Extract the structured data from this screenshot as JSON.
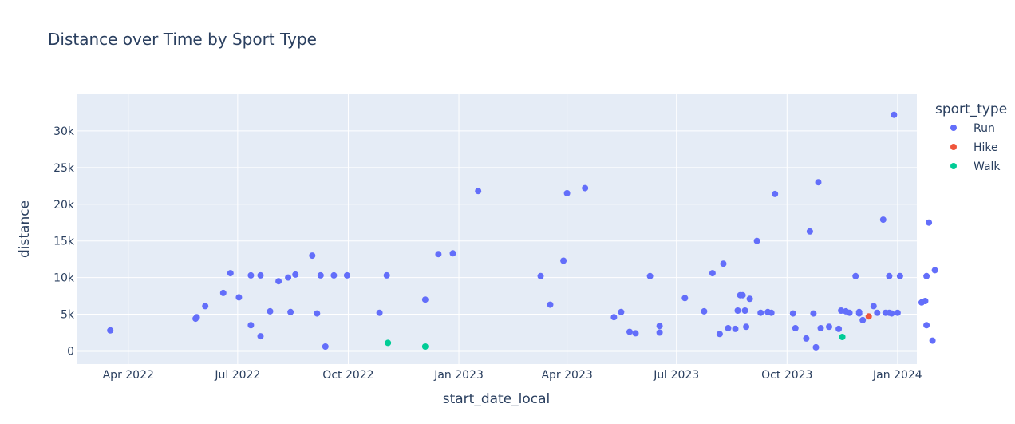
{
  "chart_data": {
    "type": "scatter",
    "title": "Distance over Time by Sport Type",
    "xlabel": "start_date_local",
    "ylabel": "distance",
    "x_ticks": [
      "Apr 2022",
      "Jul 2022",
      "Oct 2022",
      "Jan 2023",
      "Apr 2023",
      "Jul 2023",
      "Oct 2023",
      "Jan 2024"
    ],
    "y_ticks": [
      "0",
      "5k",
      "10k",
      "15k",
      "20k",
      "25k",
      "30k"
    ],
    "xlim": [
      "2022-02-17",
      "2024-01-17"
    ],
    "ylim": [
      -1800,
      35000
    ],
    "grid": true,
    "legend": {
      "title": "sport_type",
      "placement": "right"
    },
    "series": [
      {
        "name": "Run",
        "color": "#636efa",
        "points": [
          [
            "2022-03-17",
            2800
          ],
          [
            "2022-05-27",
            4400
          ],
          [
            "2022-05-28",
            4600
          ],
          [
            "2022-06-04",
            6100
          ],
          [
            "2022-06-19",
            7900
          ],
          [
            "2022-06-25",
            10600
          ],
          [
            "2022-07-02",
            7300
          ],
          [
            "2022-07-12",
            3500
          ],
          [
            "2022-07-12",
            10300
          ],
          [
            "2022-07-20",
            2000
          ],
          [
            "2022-07-20",
            10300
          ],
          [
            "2022-07-28",
            5400
          ],
          [
            "2022-08-04",
            9500
          ],
          [
            "2022-08-12",
            10000
          ],
          [
            "2022-08-14",
            5300
          ],
          [
            "2022-08-18",
            10400
          ],
          [
            "2022-09-01",
            13000
          ],
          [
            "2022-09-05",
            5100
          ],
          [
            "2022-09-08",
            10300
          ],
          [
            "2022-09-12",
            600
          ],
          [
            "2022-09-19",
            10300
          ],
          [
            "2022-09-30",
            10300
          ],
          [
            "2022-10-27",
            5200
          ],
          [
            "2022-11-02",
            10300
          ],
          [
            "2022-12-04",
            7000
          ],
          [
            "2022-12-15",
            13200
          ],
          [
            "2022-12-27",
            13300
          ],
          [
            "2023-01-17",
            21800
          ],
          [
            "2023-03-10",
            10200
          ],
          [
            "2023-03-18",
            6300
          ],
          [
            "2023-03-29",
            12300
          ],
          [
            "2023-04-01",
            21500
          ],
          [
            "2023-04-16",
            22200
          ],
          [
            "2023-05-10",
            4600
          ],
          [
            "2023-05-16",
            5300
          ],
          [
            "2023-05-23",
            2600
          ],
          [
            "2023-05-28",
            2400
          ],
          [
            "2023-06-09",
            10200
          ],
          [
            "2023-06-17",
            2500
          ],
          [
            "2023-06-17",
            3400
          ],
          [
            "2023-07-08",
            7200
          ],
          [
            "2023-07-24",
            5400
          ],
          [
            "2023-07-31",
            10600
          ],
          [
            "2023-08-06",
            2300
          ],
          [
            "2023-08-09",
            11900
          ],
          [
            "2023-08-13",
            3100
          ],
          [
            "2023-08-19",
            3000
          ],
          [
            "2023-08-21",
            5500
          ],
          [
            "2023-08-23",
            7600
          ],
          [
            "2023-08-25",
            7600
          ],
          [
            "2023-08-27",
            5500
          ],
          [
            "2023-08-28",
            3300
          ],
          [
            "2023-08-31",
            7100
          ],
          [
            "2023-09-06",
            15000
          ],
          [
            "2023-09-09",
            5200
          ],
          [
            "2023-09-15",
            5300
          ],
          [
            "2023-09-18",
            5200
          ],
          [
            "2023-09-21",
            21400
          ],
          [
            "2023-10-06",
            5100
          ],
          [
            "2023-10-08",
            3100
          ],
          [
            "2023-10-17",
            1700
          ],
          [
            "2023-10-20",
            16300
          ],
          [
            "2023-10-23",
            5100
          ],
          [
            "2023-10-25",
            500
          ],
          [
            "2023-10-27",
            23000
          ],
          [
            "2023-10-29",
            3100
          ],
          [
            "2023-11-05",
            3300
          ],
          [
            "2023-11-13",
            3000
          ],
          [
            "2023-11-15",
            5500
          ],
          [
            "2023-11-19",
            5400
          ],
          [
            "2023-11-22",
            5200
          ],
          [
            "2023-11-27",
            10200
          ],
          [
            "2023-11-30",
            5300
          ],
          [
            "2023-11-30",
            5100
          ],
          [
            "2023-12-03",
            4200
          ],
          [
            "2023-12-12",
            6100
          ],
          [
            "2023-12-15",
            5200
          ],
          [
            "2023-12-20",
            17900
          ],
          [
            "2023-12-22",
            5200
          ],
          [
            "2023-12-25",
            10200
          ],
          [
            "2023-12-25",
            5200
          ],
          [
            "2023-12-27",
            5100
          ],
          [
            "2023-12-29",
            32200
          ],
          [
            "2024-01-01",
            5200
          ],
          [
            "2024-01-03",
            10200
          ],
          [
            "2024-01-21",
            6600
          ],
          [
            "2024-01-24",
            6800
          ],
          [
            "2024-01-25",
            10200
          ],
          [
            "2024-01-25",
            3500
          ],
          [
            "2024-01-27",
            17500
          ],
          [
            "2024-01-30",
            1400
          ],
          [
            "2024-02-01",
            11000
          ]
        ]
      },
      {
        "name": "Hike",
        "color": "#ef553b",
        "points": [
          [
            "2023-12-08",
            4700
          ]
        ]
      },
      {
        "name": "Walk",
        "color": "#00cc96",
        "points": [
          [
            "2022-11-03",
            1100
          ],
          [
            "2022-12-04",
            600
          ],
          [
            "2023-11-16",
            1900
          ]
        ]
      }
    ]
  }
}
